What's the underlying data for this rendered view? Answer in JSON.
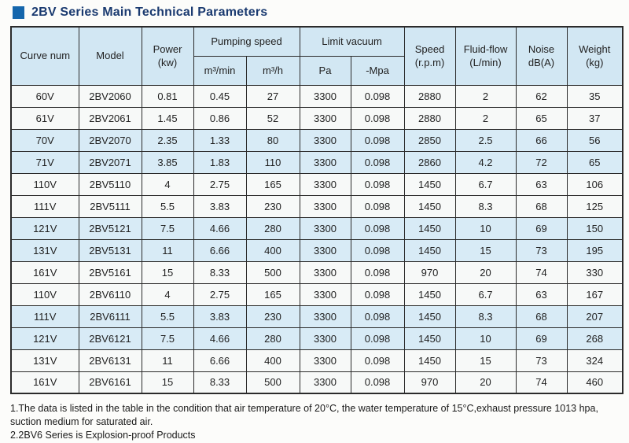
{
  "page": {
    "title": "2BV Series Main Technical Parameters"
  },
  "colors": {
    "title_text": "#1a3a70",
    "title_square": "#1566ac",
    "header_bg": "#d2e7f3",
    "row_alt_bg": "#d8ebf6",
    "row_bg": "#f7f9f8",
    "border": "#2b2b2b"
  },
  "table": {
    "headers": {
      "curve_num": "Curve num",
      "model": "Model",
      "power_l1": "Power",
      "power_l2": "(kw)",
      "pumping_speed": "Pumping speed",
      "pumping_m3min": "m³/min",
      "pumping_m3h": "m³/h",
      "limit_vacuum": "Limit vacuum",
      "limit_pa": "Pa",
      "limit_mpa": "-Mpa",
      "speed_l1": "Speed",
      "speed_l2": "(r.p.m)",
      "fluid_l1": "Fluid-flow",
      "fluid_l2": "(L/min)",
      "noise_l1": "Noise",
      "noise_l2": "dB(A)",
      "weight_l1": "Weight",
      "weight_l2": "(kg)"
    },
    "rows": [
      {
        "cells": [
          "60V",
          "2BV2060",
          "0.81",
          "0.45",
          "27",
          "3300",
          "0.098",
          "2880",
          "2",
          "62",
          "35"
        ],
        "shaded": false
      },
      {
        "cells": [
          "61V",
          "2BV2061",
          "1.45",
          "0.86",
          "52",
          "3300",
          "0.098",
          "2880",
          "2",
          "65",
          "37"
        ],
        "shaded": false
      },
      {
        "cells": [
          "70V",
          "2BV2070",
          "2.35",
          "1.33",
          "80",
          "3300",
          "0.098",
          "2850",
          "2.5",
          "66",
          "56"
        ],
        "shaded": true
      },
      {
        "cells": [
          "71V",
          "2BV2071",
          "3.85",
          "1.83",
          "110",
          "3300",
          "0.098",
          "2860",
          "4.2",
          "72",
          "65"
        ],
        "shaded": true
      },
      {
        "cells": [
          "110V",
          "2BV5110",
          "4",
          "2.75",
          "165",
          "3300",
          "0.098",
          "1450",
          "6.7",
          "63",
          "106"
        ],
        "shaded": false
      },
      {
        "cells": [
          "111V",
          "2BV5111",
          "5.5",
          "3.83",
          "230",
          "3300",
          "0.098",
          "1450",
          "8.3",
          "68",
          "125"
        ],
        "shaded": false
      },
      {
        "cells": [
          "121V",
          "2BV5121",
          "7.5",
          "4.66",
          "280",
          "3300",
          "0.098",
          "1450",
          "10",
          "69",
          "150"
        ],
        "shaded": true
      },
      {
        "cells": [
          "131V",
          "2BV5131",
          "11",
          "6.66",
          "400",
          "3300",
          "0.098",
          "1450",
          "15",
          "73",
          "195"
        ],
        "shaded": true
      },
      {
        "cells": [
          "161V",
          "2BV5161",
          "15",
          "8.33",
          "500",
          "3300",
          "0.098",
          "970",
          "20",
          "74",
          "330"
        ],
        "shaded": false
      },
      {
        "cells": [
          "110V",
          "2BV6110",
          "4",
          "2.75",
          "165",
          "3300",
          "0.098",
          "1450",
          "6.7",
          "63",
          "167"
        ],
        "shaded": false
      },
      {
        "cells": [
          "111V",
          "2BV6111",
          "5.5",
          "3.83",
          "230",
          "3300",
          "0.098",
          "1450",
          "8.3",
          "68",
          "207"
        ],
        "shaded": true
      },
      {
        "cells": [
          "121V",
          "2BV6121",
          "7.5",
          "4.66",
          "280",
          "3300",
          "0.098",
          "1450",
          "10",
          "69",
          "268"
        ],
        "shaded": true
      },
      {
        "cells": [
          "131V",
          "2BV6131",
          "11",
          "6.66",
          "400",
          "3300",
          "0.098",
          "1450",
          "15",
          "73",
          "324"
        ],
        "shaded": false
      },
      {
        "cells": [
          "161V",
          "2BV6161",
          "15",
          "8.33",
          "500",
          "3300",
          "0.098",
          "970",
          "20",
          "74",
          "460"
        ],
        "shaded": false
      }
    ]
  },
  "notes": [
    "1.The data is listed in the table in the condition that air temperature of 20°C, the water temperature of 15°C,exhaust pressure 1013 hpa, suction medium for saturated air.",
    "2.2BV6 Series is Explosion-proof Products"
  ]
}
